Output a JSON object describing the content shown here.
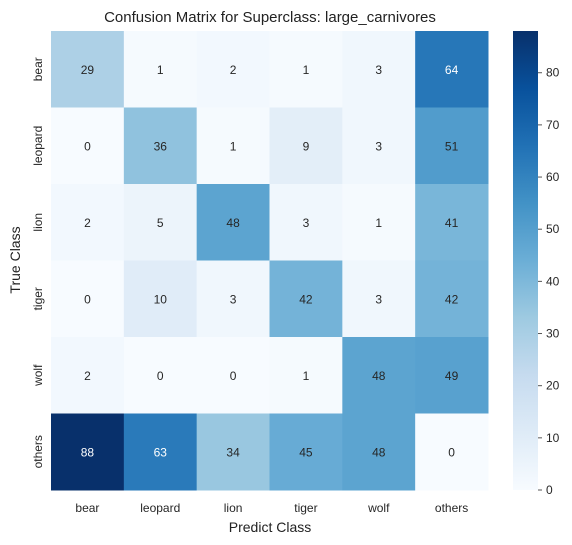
{
  "chart_data": {
    "type": "heatmap",
    "title": "Confusion Matrix for Superclass: large_carnivores",
    "xlabel": "Predict Class",
    "ylabel": "True Class",
    "x_categories": [
      "bear",
      "leopard",
      "lion",
      "tiger",
      "wolf",
      "others"
    ],
    "y_categories": [
      "bear",
      "leopard",
      "lion",
      "tiger",
      "wolf",
      "others"
    ],
    "values": [
      [
        29,
        1,
        2,
        1,
        3,
        64
      ],
      [
        0,
        36,
        1,
        9,
        3,
        51
      ],
      [
        2,
        5,
        48,
        3,
        1,
        41
      ],
      [
        0,
        10,
        3,
        42,
        3,
        42
      ],
      [
        2,
        0,
        0,
        1,
        48,
        49
      ],
      [
        88,
        63,
        34,
        45,
        48,
        0
      ]
    ],
    "colorbar": {
      "min": 0,
      "max": 88,
      "ticks": [
        0,
        10,
        20,
        30,
        40,
        50,
        60,
        70,
        80
      ],
      "colormap": "Blues",
      "colors": [
        "#f7fbff",
        "#deebf7",
        "#c6dbef",
        "#9ecae1",
        "#6baed6",
        "#4292c6",
        "#2171b5",
        "#08519c",
        "#08306b"
      ]
    },
    "grid": false
  }
}
